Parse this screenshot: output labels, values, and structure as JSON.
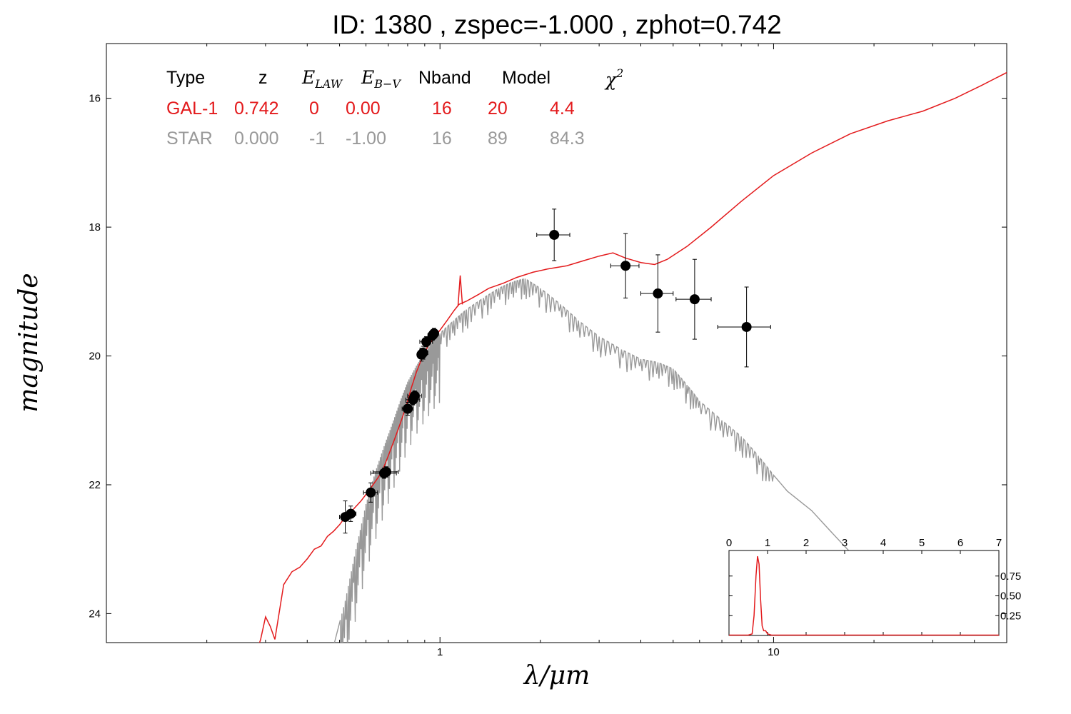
{
  "title": "ID:  1380  , zspec=-1.000 , zphot=0.742",
  "colors": {
    "galaxy": "#e31a1c",
    "star": "#999999",
    "points": "#000000"
  },
  "chart_data": {
    "type": "line",
    "xlabel": "λ/μm",
    "ylabel": "magnitude",
    "x_scale": "log",
    "y_inverted": true,
    "xlim": [
      0.1,
      50
    ],
    "ylim": [
      24.45,
      15.15
    ],
    "xticks": [
      {
        "value": 1,
        "label": "1"
      },
      {
        "value": 10,
        "label": "10"
      }
    ],
    "yticks": [
      {
        "value": 16,
        "label": "16"
      },
      {
        "value": 18,
        "label": "18"
      },
      {
        "value": 20,
        "label": "20"
      },
      {
        "value": 22,
        "label": "22"
      },
      {
        "value": 24,
        "label": "24"
      }
    ],
    "table": {
      "headers": [
        "Type",
        "z",
        "E_LAW",
        "E_B-V",
        "Nband",
        "Model",
        "χ²"
      ],
      "rows": [
        {
          "type": "GAL-1",
          "z": "0.742",
          "elaw": "0",
          "ebv": "0.00",
          "nband": "16",
          "model": "20",
          "chi2": "4.4",
          "color": "#e31a1c"
        },
        {
          "type": "STAR",
          "z": "0.000",
          "elaw": "-1",
          "ebv": "-1.00",
          "nband": "16",
          "model": "89",
          "chi2": "84.3",
          "color": "#999999"
        }
      ]
    },
    "series": [
      {
        "name": "GAL-1",
        "color": "#e31a1c",
        "points": [
          [
            0.27,
            24.9
          ],
          [
            0.29,
            24.4
          ],
          [
            0.3,
            24.05
          ],
          [
            0.31,
            24.2
          ],
          [
            0.32,
            24.4
          ],
          [
            0.34,
            23.55
          ],
          [
            0.36,
            23.35
          ],
          [
            0.38,
            23.28
          ],
          [
            0.4,
            23.15
          ],
          [
            0.42,
            23.0
          ],
          [
            0.44,
            22.95
          ],
          [
            0.46,
            22.8
          ],
          [
            0.48,
            22.72
          ],
          [
            0.5,
            22.62
          ],
          [
            0.52,
            22.5
          ],
          [
            0.55,
            22.38
          ],
          [
            0.58,
            22.25
          ],
          [
            0.61,
            22.1
          ],
          [
            0.64,
            21.95
          ],
          [
            0.67,
            21.8
          ],
          [
            0.7,
            21.55
          ],
          [
            0.73,
            21.3
          ],
          [
            0.76,
            21.05
          ],
          [
            0.79,
            20.8
          ],
          [
            0.82,
            20.5
          ],
          [
            0.85,
            20.25
          ],
          [
            0.88,
            20.05
          ],
          [
            0.92,
            19.85
          ],
          [
            0.96,
            19.72
          ],
          [
            1.0,
            19.6
          ],
          [
            1.05,
            19.45
          ],
          [
            1.1,
            19.3
          ],
          [
            1.14,
            19.2
          ],
          [
            1.2,
            19.15
          ],
          [
            1.3,
            19.05
          ],
          [
            1.4,
            18.95
          ],
          [
            1.55,
            18.87
          ],
          [
            1.7,
            18.78
          ],
          [
            1.9,
            18.7
          ],
          [
            2.1,
            18.65
          ],
          [
            2.4,
            18.6
          ],
          [
            2.7,
            18.52
          ],
          [
            3.0,
            18.45
          ],
          [
            3.3,
            18.4
          ],
          [
            3.6,
            18.48
          ],
          [
            4.0,
            18.55
          ],
          [
            4.4,
            18.58
          ],
          [
            4.8,
            18.5
          ],
          [
            5.5,
            18.3
          ],
          [
            6.5,
            18.0
          ],
          [
            8.0,
            17.6
          ],
          [
            10,
            17.2
          ],
          [
            13,
            16.85
          ],
          [
            17,
            16.55
          ],
          [
            22,
            16.35
          ],
          [
            28,
            16.2
          ],
          [
            35,
            16.0
          ],
          [
            42,
            15.8
          ],
          [
            50,
            15.6
          ]
        ],
        "features": [
          {
            "type": "emission",
            "x": 1.15,
            "y": 18.75
          },
          {
            "type": "absorption",
            "x": 0.315,
            "y": 24.4
          }
        ]
      },
      {
        "name": "STAR",
        "color": "#999999",
        "points": [
          [
            0.48,
            24.5
          ],
          [
            0.52,
            23.8
          ],
          [
            0.56,
            23.0
          ],
          [
            0.6,
            22.3
          ],
          [
            0.64,
            21.8
          ],
          [
            0.68,
            21.4
          ],
          [
            0.72,
            21.05
          ],
          [
            0.76,
            20.7
          ],
          [
            0.8,
            20.4
          ],
          [
            0.85,
            20.15
          ],
          [
            0.9,
            19.95
          ],
          [
            0.95,
            19.78
          ],
          [
            1.0,
            19.65
          ],
          [
            1.1,
            19.45
          ],
          [
            1.2,
            19.28
          ],
          [
            1.35,
            19.1
          ],
          [
            1.5,
            18.95
          ],
          [
            1.65,
            18.85
          ],
          [
            1.8,
            18.8
          ],
          [
            2.0,
            18.95
          ],
          [
            2.3,
            19.2
          ],
          [
            2.6,
            19.45
          ],
          [
            3.0,
            19.7
          ],
          [
            3.5,
            19.9
          ],
          [
            4.0,
            20.05
          ],
          [
            4.5,
            20.1
          ],
          [
            5.0,
            20.2
          ],
          [
            5.5,
            20.45
          ],
          [
            6.0,
            20.7
          ],
          [
            7.0,
            21.0
          ],
          [
            8.0,
            21.25
          ],
          [
            9.0,
            21.55
          ],
          [
            10,
            21.85
          ],
          [
            11,
            22.1
          ],
          [
            13,
            22.4
          ],
          [
            15,
            22.75
          ],
          [
            17,
            23.05
          ],
          [
            18,
            23.2
          ]
        ]
      }
    ],
    "photometry": [
      {
        "x": 0.52,
        "y": 22.5,
        "xerr": 0.02,
        "yerr": 0.25
      },
      {
        "x": 0.54,
        "y": 22.45,
        "xerr": 0.02,
        "yerr": 0.12
      },
      {
        "x": 0.62,
        "y": 22.12,
        "xerr": 0.03,
        "yerr": 0.15
      },
      {
        "x": 0.68,
        "y": 21.82,
        "xerr": 0.06,
        "yerr": 0.08
      },
      {
        "x": 0.69,
        "y": 21.8,
        "xerr": 0.06,
        "yerr": 0.08
      },
      {
        "x": 0.8,
        "y": 20.82,
        "xerr": 0.03,
        "yerr": 0.1
      },
      {
        "x": 0.83,
        "y": 20.68,
        "xerr": 0.04,
        "yerr": 0.08
      },
      {
        "x": 0.84,
        "y": 20.62,
        "xerr": 0.04,
        "yerr": 0.08
      },
      {
        "x": 0.88,
        "y": 19.98,
        "xerr": 0.02,
        "yerr": 0.1
      },
      {
        "x": 0.89,
        "y": 19.95,
        "xerr": 0.03,
        "yerr": 0.1
      },
      {
        "x": 0.91,
        "y": 19.78,
        "xerr": 0.04,
        "yerr": 0.08
      },
      {
        "x": 0.95,
        "y": 19.68,
        "xerr": 0.03,
        "yerr": 0.08
      },
      {
        "x": 0.96,
        "y": 19.65,
        "xerr": 0.03,
        "yerr": 0.08
      },
      {
        "x": 2.2,
        "y": 18.12,
        "xerr": 0.25,
        "yerr": 0.4
      },
      {
        "x": 3.6,
        "y": 18.6,
        "xerr": 0.35,
        "yerr": 0.5
      },
      {
        "x": 4.5,
        "y": 19.03,
        "xerr": 0.5,
        "yerr": 0.6
      },
      {
        "x": 5.8,
        "y": 19.12,
        "xerr": 0.7,
        "yerr": 0.62
      },
      {
        "x": 8.3,
        "y": 19.55,
        "xerr": 1.5,
        "yerr": 0.62
      }
    ],
    "inset": {
      "type": "line",
      "xlim": [
        0,
        7
      ],
      "ylim": [
        0,
        1.0
      ],
      "xticks": [
        0,
        1,
        2,
        3,
        4,
        5,
        6,
        7
      ],
      "yticks": [
        {
          "value": 0.25,
          "label": "0.25"
        },
        {
          "value": 0.5,
          "label": "0.50"
        },
        {
          "value": 0.75,
          "label": "0.75"
        }
      ],
      "series": {
        "color": "#e31a1c",
        "points": [
          [
            0,
            0.005
          ],
          [
            0.5,
            0.005
          ],
          [
            0.6,
            0.02
          ],
          [
            0.65,
            0.25
          ],
          [
            0.7,
            0.75
          ],
          [
            0.74,
            1.0
          ],
          [
            0.78,
            0.9
          ],
          [
            0.82,
            0.45
          ],
          [
            0.86,
            0.12
          ],
          [
            0.9,
            0.06
          ],
          [
            0.95,
            0.06
          ],
          [
            1.0,
            0.02
          ],
          [
            1.1,
            0.005
          ],
          [
            7,
            0.005
          ]
        ]
      }
    }
  }
}
